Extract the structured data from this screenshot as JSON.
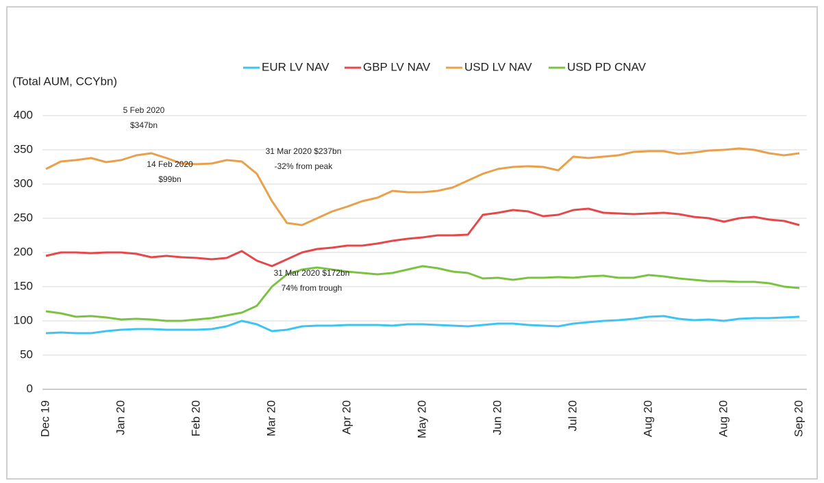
{
  "chart_data": {
    "type": "line",
    "y_label": "(Total AUM,  CCYbn)",
    "categories": [
      "Dec 19",
      null,
      null,
      null,
      null,
      "Jan 20",
      null,
      null,
      null,
      null,
      "Feb 20",
      null,
      null,
      null,
      null,
      "Mar 20",
      null,
      null,
      null,
      null,
      "Apr 20",
      null,
      null,
      null,
      null,
      "May 20",
      null,
      null,
      null,
      null,
      "Jun 20",
      null,
      null,
      null,
      null,
      "Jul 20",
      null,
      null,
      null,
      null,
      "Aug 20",
      null,
      null,
      null,
      null,
      "Aug 20",
      null,
      null,
      null,
      null,
      "Sep 20"
    ],
    "series": [
      {
        "name": "EUR LV NAV",
        "color": "#3ec4f2",
        "values": [
          82,
          83,
          82,
          82,
          85,
          87,
          88,
          88,
          87,
          87,
          87,
          88,
          92,
          100,
          95,
          85,
          87,
          92,
          93,
          93,
          94,
          94,
          94,
          93,
          95,
          95,
          94,
          93,
          92,
          94,
          96,
          96,
          94,
          93,
          92,
          96,
          98,
          100,
          101,
          103,
          106,
          107,
          103,
          101,
          102,
          100,
          103,
          104,
          104,
          105,
          106
        ]
      },
      {
        "name": "GBP LV NAV",
        "color": "#e5484a",
        "values": [
          195,
          200,
          200,
          199,
          200,
          200,
          198,
          193,
          195,
          193,
          192,
          190,
          192,
          202,
          188,
          180,
          190,
          200,
          205,
          207,
          210,
          210,
          213,
          217,
          220,
          222,
          225,
          225,
          226,
          255,
          258,
          262,
          260,
          253,
          255,
          262,
          264,
          258,
          257,
          256,
          257,
          258,
          256,
          252,
          250,
          245,
          250,
          252,
          248,
          246,
          240
        ]
      },
      {
        "name": "USD LV NAV",
        "color": "#e8a04a",
        "values": [
          322,
          333,
          335,
          338,
          332,
          335,
          342,
          345,
          338,
          330,
          329,
          330,
          335,
          333,
          315,
          275,
          243,
          240,
          250,
          260,
          267,
          275,
          280,
          290,
          288,
          288,
          290,
          295,
          305,
          315,
          322,
          325,
          326,
          325,
          320,
          340,
          338,
          340,
          342,
          347,
          348,
          348,
          344,
          346,
          349,
          350,
          352,
          350,
          345,
          342,
          345
        ]
      },
      {
        "name": "USD PD CNAV",
        "color": "#7cc242",
        "values": [
          114,
          111,
          106,
          107,
          105,
          102,
          103,
          102,
          100,
          100,
          102,
          104,
          108,
          112,
          122,
          150,
          168,
          175,
          178,
          175,
          172,
          170,
          168,
          170,
          175,
          180,
          177,
          172,
          170,
          162,
          163,
          160,
          163,
          163,
          164,
          163,
          165,
          166,
          163,
          163,
          167,
          165,
          162,
          160,
          158,
          158,
          157,
          157,
          155,
          150,
          148
        ]
      }
    ],
    "ylim": [
      0,
      400
    ],
    "yticks": [
      0,
      50,
      100,
      150,
      200,
      250,
      300,
      350,
      400
    ],
    "grid": true,
    "annotations": [
      [
        "5 Feb 2020",
        "$347bn"
      ],
      [
        "31 Mar 2020 $237bn",
        "-32% from peak"
      ],
      [
        "14 Feb 2020",
        "$99bn"
      ],
      [
        "31 Mar 2020 $172bn",
        "74% from trough"
      ]
    ]
  }
}
